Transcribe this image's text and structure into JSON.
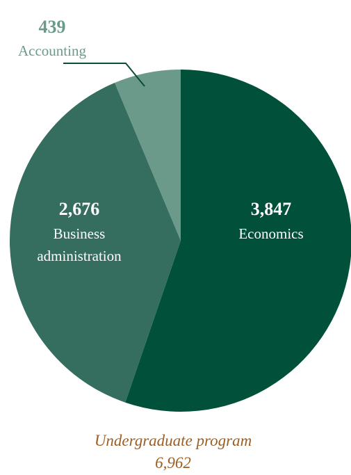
{
  "chart_data": {
    "type": "pie",
    "slices": [
      {
        "name": "Economics",
        "value": 3847,
        "value_label": "3,847",
        "color": "#00503a"
      },
      {
        "name": "Business administration",
        "value": 2676,
        "value_label": "2,676",
        "color": "#356e5e"
      },
      {
        "name": "Accounting",
        "value": 439,
        "value_label": "439",
        "color": "#6b9a8b"
      }
    ],
    "total": {
      "label": "Undergraduate program",
      "value": 6962,
      "value_label": "6,962",
      "color": "#9b5f25"
    },
    "accounting_label_color": "#6b9a8b",
    "inside_label_color": "#ffffff",
    "start_angle": "12 o'clock",
    "direction": "clockwise"
  }
}
